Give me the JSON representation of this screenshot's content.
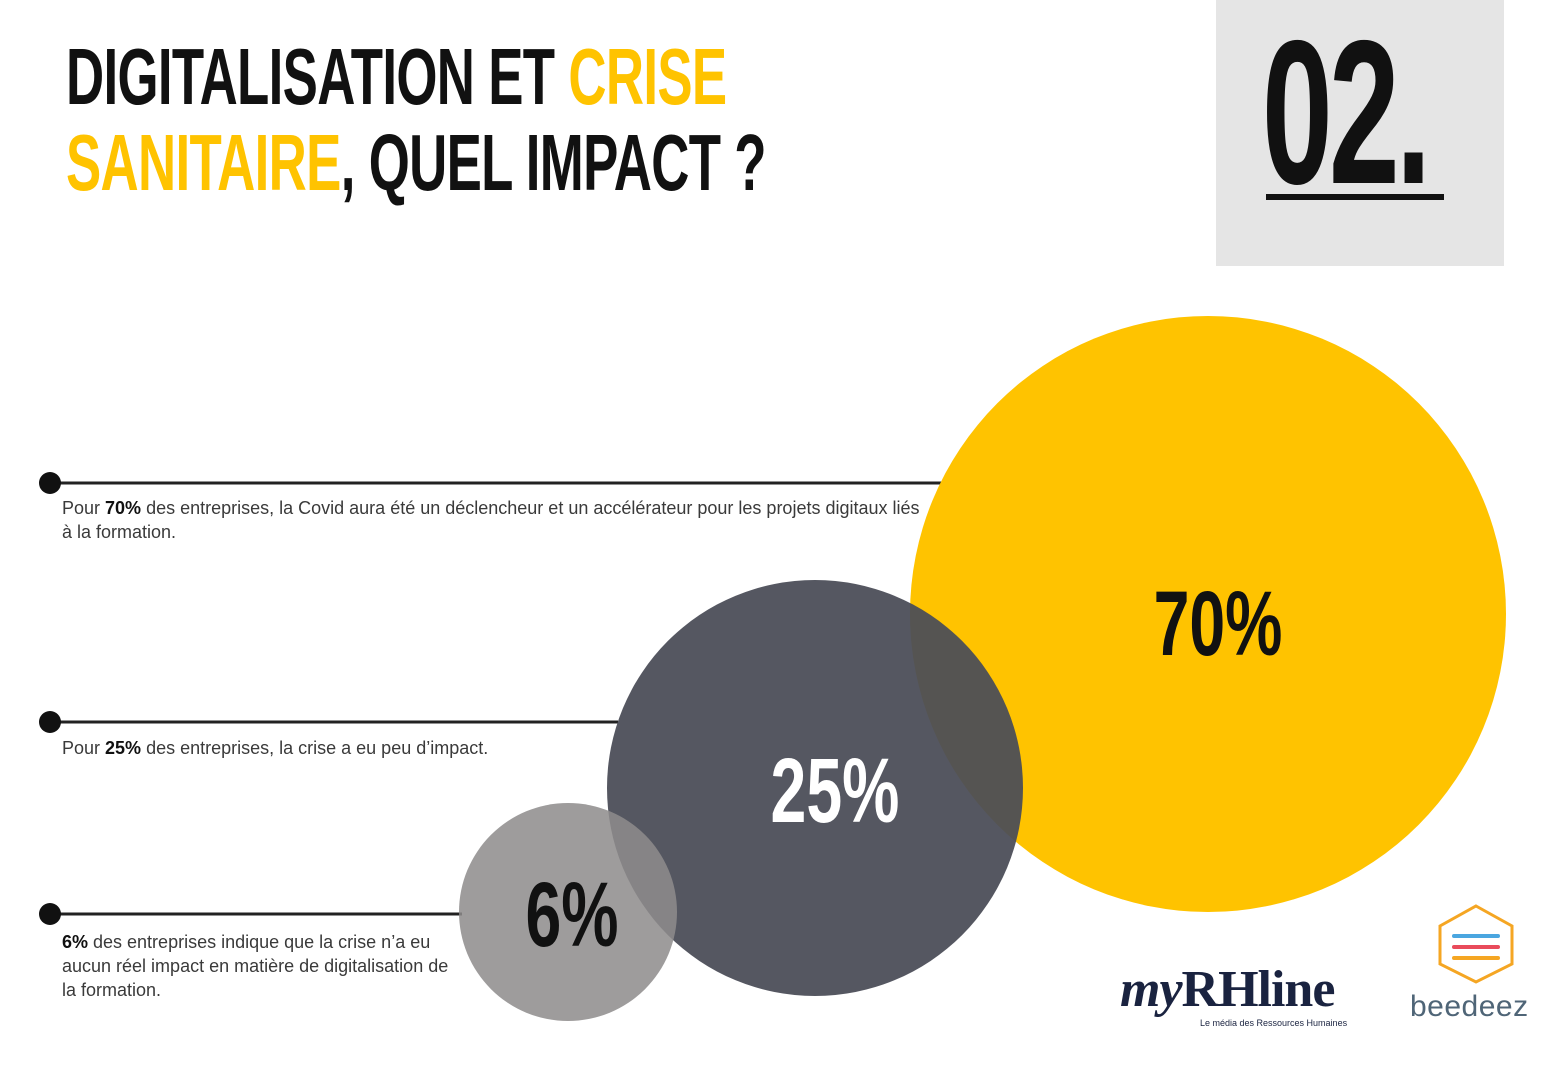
{
  "title": {
    "part1": "DIGITALISATION ET ",
    "part2": "CRISE",
    "part3": "SANITAIRE",
    "part4": ", QUEL IMPACT ?"
  },
  "section_number": "02.",
  "colors": {
    "accent_yellow": "#ffc300",
    "dark_gray": "#4a4d57",
    "light_gray": "#8e8c8c",
    "text": "#111111"
  },
  "chart_data": {
    "type": "bubble",
    "title": "DIGITALISATION ET CRISE SANITAIRE, QUEL IMPACT ?",
    "series": [
      {
        "value": 70,
        "label": "70%",
        "color": "#ffc300",
        "description": {
          "prefix": "Pour ",
          "bold": "70%",
          "suffix": " des entreprises, la Covid aura été un déclencheur et un accélérateur pour les projets digitaux liés à la formation."
        }
      },
      {
        "value": 25,
        "label": "25%",
        "color": "#4a4d57",
        "description": {
          "prefix": "Pour ",
          "bold": "25%",
          "suffix": " des entreprises, la crise a eu peu d’impact."
        }
      },
      {
        "value": 6,
        "label": "6%",
        "color": "#8e8c8c",
        "description": {
          "prefix": "",
          "bold": "6%",
          "suffix": " des entreprises indique que la crise n’a eu aucun réel impact en matière de digitalisation de la formation."
        }
      }
    ]
  },
  "logos": {
    "myrhline_my": "my",
    "myrhline_rh": "RHline",
    "myrhline_tagline": "Le média des Ressources Humaines",
    "beedeez": "beedeez"
  }
}
